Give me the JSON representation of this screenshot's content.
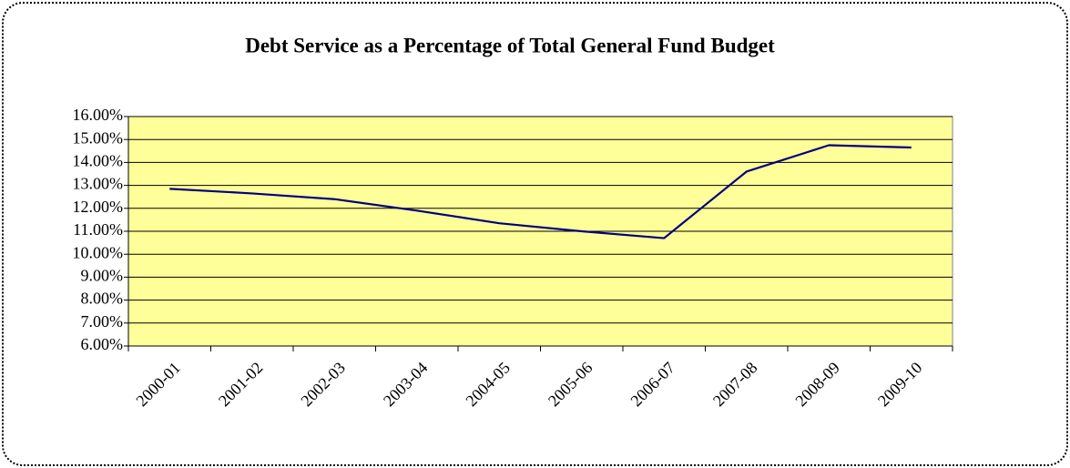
{
  "chart_data": {
    "type": "line",
    "title": "Debt Service as a Percentage of Total General Fund Budget",
    "categories": [
      "2000-01",
      "2001-02",
      "2002-03",
      "2003-04",
      "2004-05",
      "2005-06",
      "2006-07",
      "2007-08",
      "2008-09",
      "2009-10"
    ],
    "series": [
      {
        "color": "#000080",
        "values": [
          12.85,
          12.65,
          12.4,
          11.9,
          11.35,
          11.0,
          10.7,
          13.6,
          14.75,
          14.65
        ]
      }
    ],
    "ylim": [
      6,
      16
    ],
    "yticks": [
      {
        "value": 6,
        "label": "6.00%"
      },
      {
        "value": 7,
        "label": "7.00%"
      },
      {
        "value": 8,
        "label": "8.00%"
      },
      {
        "value": 9,
        "label": "9.00%"
      },
      {
        "value": 10,
        "label": "10.00%"
      },
      {
        "value": 11,
        "label": "11.00%"
      },
      {
        "value": 12,
        "label": "12.00%"
      },
      {
        "value": 13,
        "label": "13.00%"
      },
      {
        "value": 14,
        "label": "14.00%"
      },
      {
        "value": 15,
        "label": "15.00%"
      },
      {
        "value": 16,
        "label": "16.00%"
      }
    ],
    "grid": true,
    "plot_color": "#ffff99"
  }
}
